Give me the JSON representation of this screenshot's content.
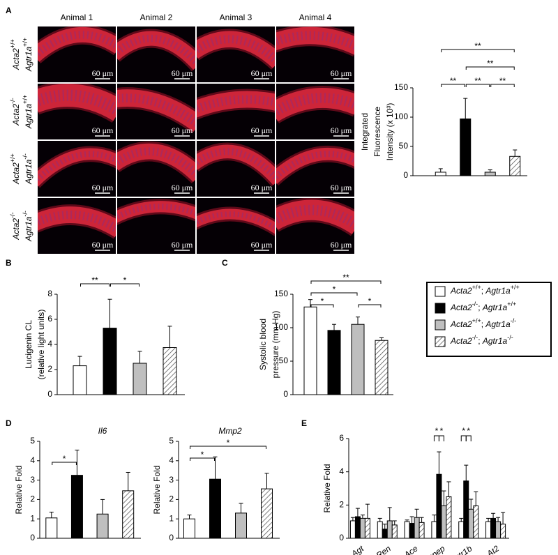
{
  "panel_labels": [
    "A",
    "B",
    "C",
    "D",
    "E"
  ],
  "legend": {
    "separator": "; ",
    "entries": [
      {
        "gene_a": "Acta2",
        "geno_a": "+/+",
        "gene_b": "Agtr1a",
        "geno_b": "+/+",
        "fill": "#ffffff"
      },
      {
        "gene_a": "Acta2",
        "geno_a": "-/-",
        "gene_b": "Agtr1a",
        "geno_b": "+/+",
        "fill": "#000000"
      },
      {
        "gene_a": "Acta2",
        "geno_a": "+/+",
        "gene_b": "Agtr1a",
        "geno_b": "-/-",
        "fill": "#bfbfbf"
      },
      {
        "gene_a": "Acta2",
        "geno_a": "-/-",
        "gene_b": "Agtr1a",
        "geno_b": "-/-",
        "fill": "hatch"
      }
    ]
  },
  "image_grid": {
    "columns": [
      "Animal 1",
      "Animal 2",
      "Animal 3",
      "Animal 4"
    ],
    "scale_bar": "60 μm"
  },
  "chart_data": [
    {
      "type": "bar",
      "y_label": [
        "Integrated",
        "Fluorescence",
        "Intensity (x 10³)"
      ],
      "values": [
        6,
        97,
        6,
        33
      ],
      "errors": [
        6,
        35,
        4,
        11
      ],
      "ylim": [
        0,
        150
      ],
      "yticks": [
        0,
        50,
        100,
        150
      ],
      "significance": [
        {
          "pair": [
            0,
            1
          ],
          "label": "**"
        },
        {
          "pair": [
            1,
            2
          ],
          "label": "**"
        },
        {
          "pair": [
            2,
            3
          ],
          "label": "**"
        },
        {
          "pair": [
            1,
            3
          ],
          "label": "**"
        },
        {
          "pair": [
            0,
            3
          ],
          "label": "**"
        }
      ]
    },
    {
      "type": "bar",
      "y_label": [
        "Lucigenin CL",
        "(relative light units)"
      ],
      "values": [
        2.3,
        5.3,
        2.5,
        3.75
      ],
      "errors": [
        0.75,
        2.3,
        0.95,
        1.7
      ],
      "ylim": [
        0,
        8
      ],
      "yticks": [
        0,
        2,
        4,
        6,
        8
      ],
      "significance": [
        {
          "pair": [
            0,
            1
          ],
          "label": "**"
        },
        {
          "pair": [
            1,
            2
          ],
          "label": "*"
        }
      ]
    },
    {
      "type": "bar",
      "y_label": [
        "Systolic blood",
        "pressure (mm Hg)"
      ],
      "values": [
        131,
        96,
        105,
        81
      ],
      "errors": [
        11,
        9,
        11,
        4
      ],
      "ylim": [
        0,
        150
      ],
      "yticks": [
        0,
        50,
        100,
        150
      ],
      "significance": [
        {
          "pair": [
            0,
            1
          ],
          "label": "*"
        },
        {
          "pair": [
            2,
            3
          ],
          "label": "*"
        },
        {
          "pair": [
            0,
            2
          ],
          "label": "*"
        },
        {
          "pair": [
            0,
            3
          ],
          "label": "**"
        }
      ]
    },
    {
      "type": "bar",
      "title": "Il6",
      "y_label": [
        "Relative Fold"
      ],
      "values": [
        1.05,
        3.25,
        1.25,
        2.45
      ],
      "errors": [
        0.3,
        1.3,
        0.75,
        0.95
      ],
      "ylim": [
        0,
        5
      ],
      "yticks": [
        0,
        1,
        2,
        3,
        4,
        5
      ],
      "significance": [
        {
          "pair": [
            0,
            1
          ],
          "label": "*"
        }
      ]
    },
    {
      "type": "bar",
      "title": "Mmp2",
      "y_label": [
        "Relative Fold"
      ],
      "values": [
        1.0,
        3.05,
        1.3,
        2.55
      ],
      "errors": [
        0.2,
        1.15,
        0.5,
        0.8
      ],
      "ylim": [
        0,
        5
      ],
      "yticks": [
        0,
        1,
        2,
        3,
        4,
        5
      ],
      "significance": [
        {
          "pair": [
            0,
            1
          ],
          "label": "*"
        },
        {
          "pair": [
            0,
            3
          ],
          "label": "*"
        }
      ]
    },
    {
      "type": "grouped_bar",
      "y_label": [
        "Relative Fold"
      ],
      "categories": [
        "Agt",
        "Ren",
        "Ace",
        "Enpep",
        "Agtr1b",
        "At2"
      ],
      "series": [
        {
          "values": [
            1.05,
            1.0,
            1.0,
            1.0,
            1.0,
            1.0
          ],
          "errors": [
            0.2,
            0.2,
            0.1,
            0.4,
            0.2,
            0.2
          ]
        },
        {
          "values": [
            1.3,
            0.55,
            0.9,
            3.85,
            3.45,
            1.2
          ],
          "errors": [
            0.5,
            0.3,
            0.4,
            1.35,
            0.95,
            0.3
          ]
        },
        {
          "values": [
            1.2,
            1.05,
            1.25,
            1.95,
            1.75,
            1.0
          ],
          "errors": [
            0.2,
            0.8,
            0.5,
            0.9,
            0.6,
            0.25
          ]
        },
        {
          "values": [
            1.2,
            0.8,
            0.95,
            2.5,
            1.95,
            0.85
          ],
          "errors": [
            0.85,
            0.25,
            0.3,
            0.9,
            0.85,
            0.7
          ]
        }
      ],
      "ylim": [
        0,
        6
      ],
      "yticks": [
        0,
        2,
        4,
        6
      ],
      "significance": [
        {
          "category": 3,
          "pair": [
            0,
            1
          ],
          "label": "*"
        },
        {
          "category": 3,
          "pair": [
            1,
            2
          ],
          "label": "*"
        },
        {
          "category": 4,
          "pair": [
            0,
            1
          ],
          "label": "*"
        },
        {
          "category": 4,
          "pair": [
            1,
            2
          ],
          "label": "*"
        }
      ]
    }
  ]
}
